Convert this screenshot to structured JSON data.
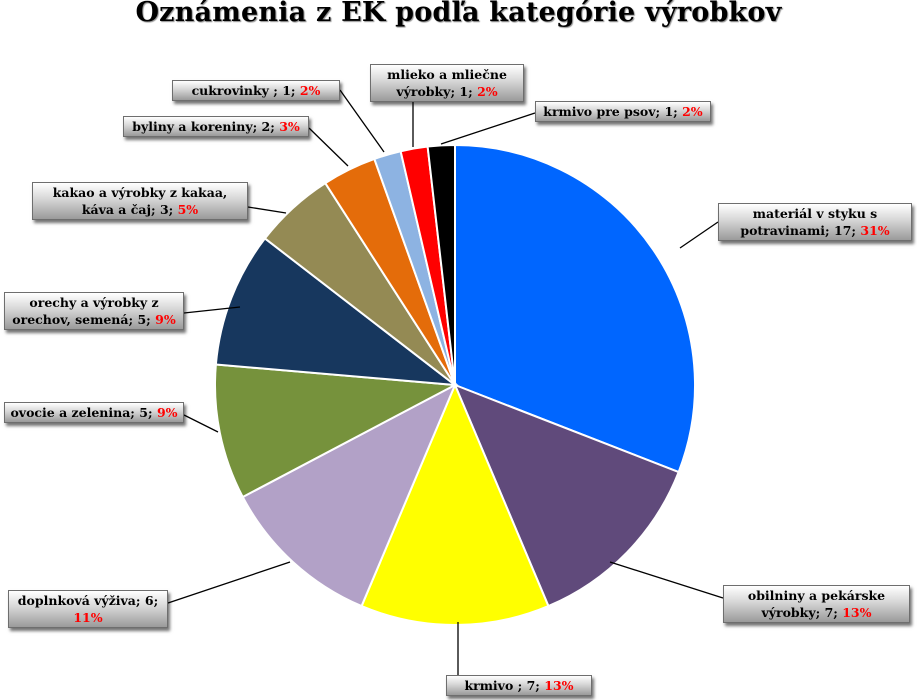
{
  "chart_data": {
    "type": "pie",
    "title": "Oznámenia z EK podľa kategórie výrobkov",
    "slices": [
      {
        "label": "materiál v styku s potravinami",
        "value": 17,
        "percent": "31%",
        "color": "#0066ff"
      },
      {
        "label": "obilniny a pekárske výrobky",
        "value": 7,
        "percent": "13%",
        "color": "#604a7b"
      },
      {
        "label": "krmivo ",
        "value": 7,
        "percent": "13%",
        "color": "#ffff00"
      },
      {
        "label": "doplnková výživa",
        "value": 6,
        "percent": "11%",
        "color": "#b2a1c7"
      },
      {
        "label": "ovocie a zelenina",
        "value": 5,
        "percent": "9%",
        "color": "#76923c"
      },
      {
        "label": "orechy a výrobky z orechov, semená",
        "value": 5,
        "percent": "9%",
        "color": "#17375e"
      },
      {
        "label": "kakao a výrobky z kakaa, káva a čaj",
        "value": 3,
        "percent": "5%",
        "color": "#948a54"
      },
      {
        "label": "byliny a koreniny",
        "value": 2,
        "percent": "3%",
        "color": "#e46c0a"
      },
      {
        "label": "cukrovinky ",
        "value": 1,
        "percent": "2%",
        "color": "#8db3e2"
      },
      {
        "label": "mlieko a mliečne výrobky",
        "value": 1,
        "percent": "2%",
        "color": "#ff0000"
      },
      {
        "label": "krmivo pre psov",
        "value": 1,
        "percent": "2%",
        "color": "#000000"
      }
    ]
  }
}
